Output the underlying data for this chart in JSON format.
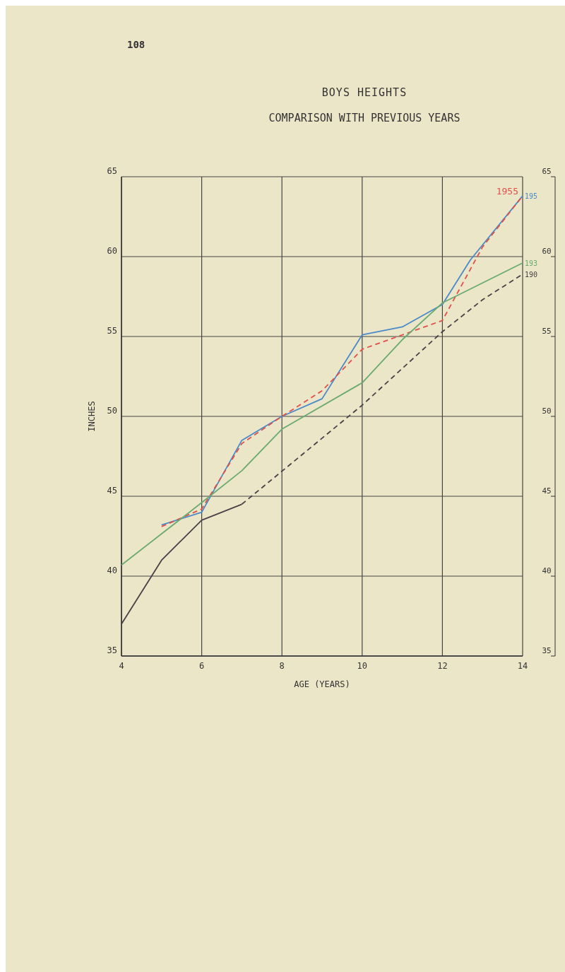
{
  "chart_data": {
    "type": "line",
    "title": "BOYS HEIGHTS",
    "subtitle": "COMPARISON WITH PREVIOUS YEARS",
    "xlabel": "AGE (YEARS)",
    "ylabel": "INCHES",
    "xlim": [
      4,
      14
    ],
    "xticks": [
      4,
      6,
      8,
      10,
      12,
      14
    ],
    "ylim": [
      35,
      65
    ],
    "yticks": [
      35,
      40,
      45,
      50,
      55,
      60,
      65
    ],
    "y2lim": [
      35,
      65
    ],
    "y2ticks": [
      35,
      40,
      45,
      50,
      55,
      60,
      65
    ],
    "grid": true,
    "marker": "none",
    "annotations": [
      "108"
    ],
    "series": [
      {
        "name": "195",
        "color": "#4a8ac8",
        "line_style": "solid",
        "x": [
          5,
          6,
          7,
          8,
          9,
          10,
          11,
          12,
          12.7,
          14
        ],
        "values": [
          43.2,
          44.0,
          48.5,
          50.0,
          51.1,
          55.1,
          55.6,
          57.0,
          59.8,
          63.8
        ]
      },
      {
        "name": "1955",
        "color": "#e0504a",
        "line_style": "dashed",
        "x": [
          5,
          6,
          7,
          8,
          9,
          10,
          11,
          12,
          13,
          14
        ],
        "values": [
          43.1,
          44.2,
          48.3,
          50.0,
          51.6,
          54.2,
          55.1,
          56.0,
          60.6,
          63.8
        ]
      },
      {
        "name": "193",
        "color": "#6aaa70",
        "line_style": "solid",
        "x": [
          4,
          6,
          7,
          8,
          10,
          11,
          12,
          14
        ],
        "values": [
          40.7,
          44.6,
          46.6,
          49.2,
          52.1,
          54.8,
          57.1,
          59.6
        ]
      },
      {
        "color": "#4a4048",
        "line_style": "solid",
        "x": [
          4,
          5,
          6,
          7
        ],
        "values": [
          37.0,
          41.0,
          43.5,
          44.5
        ]
      },
      {
        "name": "190",
        "color": "#4a4048",
        "line_style": "dashed",
        "x": [
          7,
          10,
          12,
          13,
          14
        ],
        "values": [
          44.5,
          50.7,
          55.3,
          57.3,
          58.9
        ]
      }
    ]
  }
}
